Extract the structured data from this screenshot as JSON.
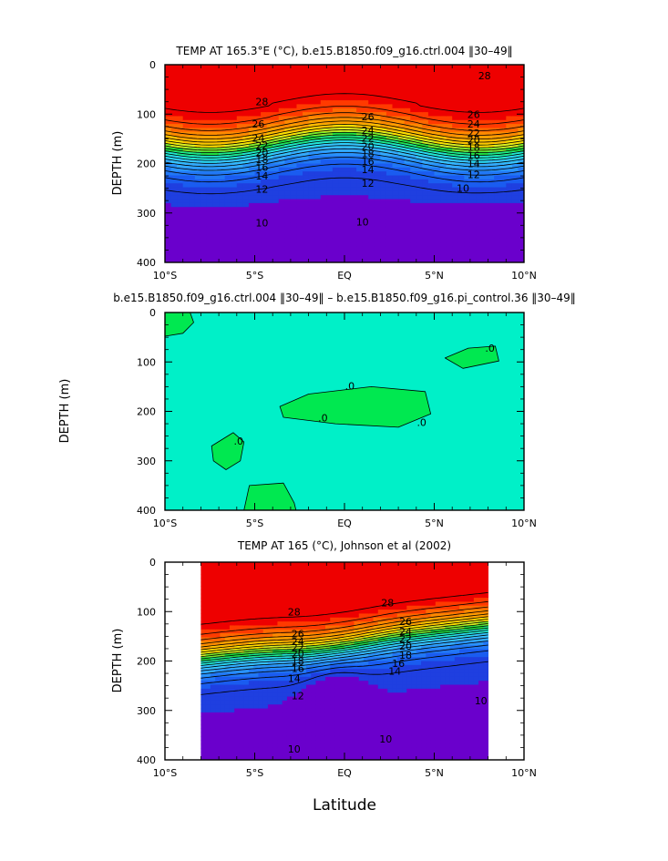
{
  "colors": {
    "bands": [
      "#6a00cc",
      "#1f3fe0",
      "#1a5cf0",
      "#2177f5",
      "#2993fb",
      "#33aaff",
      "#35c2ff",
      "#2ad8f5",
      "#20e8d0",
      "#1ae88a",
      "#20e040",
      "#7cec2c",
      "#d8f020",
      "#ffe000",
      "#ffc000",
      "#ffa000",
      "#ff8a00",
      "#ff6800",
      "#ff3a00",
      "#ee0000"
    ],
    "frame": "#000000",
    "diff_bg": "#00f0c8",
    "diff_blob": "#00e850"
  },
  "chart_data": [
    {
      "type": "contour",
      "panel": "top",
      "title": "TEMP AT 165.3°E (°C), b.e15.B1850.f09_g16.ctrl.004 ‖30–49‖",
      "xlabel": "",
      "ylabel": "DEPTH (m)",
      "xlim": [
        -10,
        10
      ],
      "ylim": [
        400,
        0
      ],
      "xticks": [
        "10°S",
        "5°S",
        "EQ",
        "5°N",
        "10°N"
      ],
      "yticks": [
        "0",
        "100",
        "200",
        "300",
        "400"
      ],
      "contour_levels": [
        10,
        11,
        12,
        13,
        14,
        15,
        16,
        17,
        18,
        19,
        20,
        21,
        22,
        23,
        24,
        25,
        26,
        27,
        28
      ],
      "labels": [
        {
          "text": "28",
          "lat": -4.6,
          "depth": 75
        },
        {
          "text": "28",
          "lat": 7.8,
          "depth": 22
        },
        {
          "text": "26",
          "lat": -4.8,
          "depth": 120
        },
        {
          "text": "26",
          "lat": 1.3,
          "depth": 105
        },
        {
          "text": "26",
          "lat": 7.2,
          "depth": 100
        },
        {
          "text": "24",
          "lat": -4.8,
          "depth": 148
        },
        {
          "text": "24",
          "lat": 1.3,
          "depth": 133
        },
        {
          "text": "24",
          "lat": 7.2,
          "depth": 120
        },
        {
          "text": "22",
          "lat": -4.6,
          "depth": 163
        },
        {
          "text": "22",
          "lat": 1.3,
          "depth": 148
        },
        {
          "text": "22",
          "lat": 7.2,
          "depth": 138
        },
        {
          "text": "20",
          "lat": -4.6,
          "depth": 178
        },
        {
          "text": "20",
          "lat": 1.3,
          "depth": 165
        },
        {
          "text": "20",
          "lat": 7.2,
          "depth": 152
        },
        {
          "text": "18",
          "lat": -4.6,
          "depth": 192
        },
        {
          "text": "18",
          "lat": 1.3,
          "depth": 180
        },
        {
          "text": "18",
          "lat": 7.2,
          "depth": 167
        },
        {
          "text": "16",
          "lat": -4.6,
          "depth": 207
        },
        {
          "text": "16",
          "lat": 1.3,
          "depth": 195
        },
        {
          "text": "16",
          "lat": 7.2,
          "depth": 183
        },
        {
          "text": "14",
          "lat": -4.6,
          "depth": 225
        },
        {
          "text": "14",
          "lat": 1.3,
          "depth": 212
        },
        {
          "text": "14",
          "lat": 7.2,
          "depth": 200
        },
        {
          "text": "12",
          "lat": -4.6,
          "depth": 252
        },
        {
          "text": "12",
          "lat": 1.3,
          "depth": 240
        },
        {
          "text": "12",
          "lat": 7.2,
          "depth": 222
        },
        {
          "text": "10",
          "lat": -4.6,
          "depth": 320
        },
        {
          "text": "10",
          "lat": 1.0,
          "depth": 318
        },
        {
          "text": "10",
          "lat": 6.6,
          "depth": 250
        }
      ]
    },
    {
      "type": "contour",
      "panel": "middle",
      "title": "b.e15.B1850.f09_g16.ctrl.004 ‖30–49‖ – b.e15.B1850.f09_g16.pi_control.36 ‖30–49‖",
      "xlabel": "",
      "ylabel": "DEPTH (m)",
      "xlim": [
        -10,
        10
      ],
      "ylim": [
        400,
        0
      ],
      "xticks": [
        "10°S",
        "5°S",
        "EQ",
        "5°N",
        "10°N"
      ],
      "yticks": [
        "0",
        "100",
        "200",
        "300",
        "400"
      ],
      "contour_levels": [
        0
      ],
      "labels": [
        {
          "text": ".0",
          "lat": 0.3,
          "depth": 148
        },
        {
          "text": ".0",
          "lat": -1.2,
          "depth": 213
        },
        {
          "text": ".0",
          "lat": 4.3,
          "depth": 222
        },
        {
          "text": ".0",
          "lat": -5.9,
          "depth": 260
        },
        {
          "text": ".0",
          "lat": 8.1,
          "depth": 72
        }
      ]
    },
    {
      "type": "contour",
      "panel": "bottom",
      "title": "TEMP AT 165 (°C), Johnson et al (2002)",
      "xlabel": "Latitude",
      "ylabel": "DEPTH (m)",
      "xlim": [
        -10,
        10
      ],
      "ylim": [
        400,
        0
      ],
      "data_xlim": [
        -8,
        8
      ],
      "xticks": [
        "10°S",
        "5°S",
        "EQ",
        "5°N",
        "10°N"
      ],
      "yticks": [
        "0",
        "100",
        "200",
        "300",
        "400"
      ],
      "contour_levels": [
        10,
        11,
        12,
        13,
        14,
        15,
        16,
        17,
        18,
        19,
        20,
        21,
        22,
        23,
        24,
        25,
        26,
        27,
        28
      ],
      "labels": [
        {
          "text": "28",
          "lat": -2.8,
          "depth": 100
        },
        {
          "text": "28",
          "lat": 2.4,
          "depth": 82
        },
        {
          "text": "26",
          "lat": -2.6,
          "depth": 145
        },
        {
          "text": "26",
          "lat": 3.4,
          "depth": 120
        },
        {
          "text": "24",
          "lat": -2.6,
          "depth": 160
        },
        {
          "text": "24",
          "lat": 3.4,
          "depth": 140
        },
        {
          "text": "22",
          "lat": -2.6,
          "depth": 172
        },
        {
          "text": "22",
          "lat": 3.4,
          "depth": 155
        },
        {
          "text": "20",
          "lat": -2.6,
          "depth": 185
        },
        {
          "text": "20",
          "lat": 3.4,
          "depth": 170
        },
        {
          "text": "18",
          "lat": -2.6,
          "depth": 200
        },
        {
          "text": "18",
          "lat": 3.4,
          "depth": 188
        },
        {
          "text": "16",
          "lat": -2.6,
          "depth": 215
        },
        {
          "text": "16",
          "lat": 3.0,
          "depth": 205
        },
        {
          "text": "14",
          "lat": -2.8,
          "depth": 235
        },
        {
          "text": "14",
          "lat": 2.8,
          "depth": 220
        },
        {
          "text": "12",
          "lat": -2.6,
          "depth": 270
        },
        {
          "text": "10",
          "lat": 7.6,
          "depth": 280
        },
        {
          "text": "10",
          "lat": -2.8,
          "depth": 378
        },
        {
          "text": "10",
          "lat": 2.3,
          "depth": 358
        }
      ]
    }
  ]
}
